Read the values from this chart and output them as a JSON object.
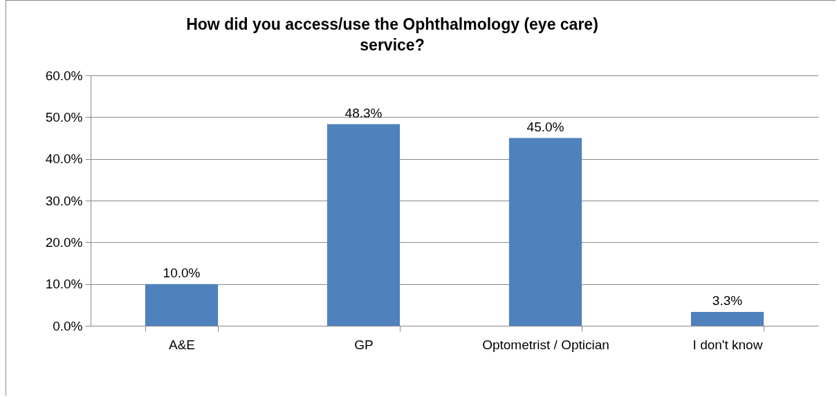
{
  "chart_data": {
    "type": "bar",
    "title": "How did you access/use the Ophthalmology (eye care) service?",
    "categories": [
      "A&E",
      "GP",
      "Optometrist / Optician",
      "I don't know"
    ],
    "values": [
      10.0,
      48.3,
      45.0,
      3.3
    ],
    "value_labels": [
      "10.0%",
      "48.3%",
      "45.0%",
      "3.3%"
    ],
    "color": "#4f81bd",
    "ylim": [
      0,
      60
    ],
    "yticks": [
      {
        "value": 0,
        "label": "0.0%"
      },
      {
        "value": 10,
        "label": "10.0%"
      },
      {
        "value": 20,
        "label": "20.0%"
      },
      {
        "value": 30,
        "label": "30.0%"
      },
      {
        "value": 40,
        "label": "40.0%"
      },
      {
        "value": 50,
        "label": "50.0%"
      },
      {
        "value": 60,
        "label": "60.0%"
      }
    ],
    "grid": "y"
  }
}
